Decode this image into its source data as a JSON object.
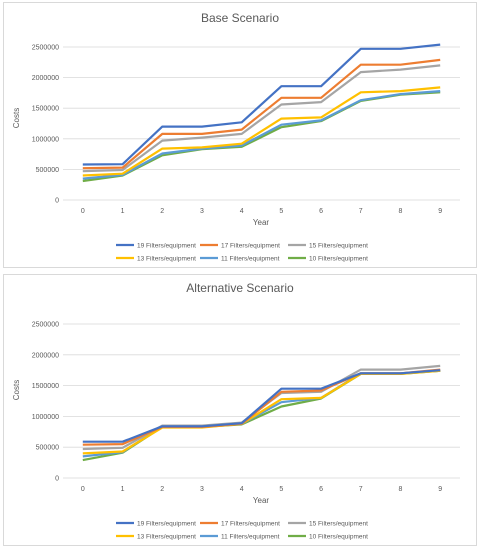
{
  "chart_data": [
    {
      "type": "line",
      "title": "Base Scenario",
      "xlabel": "Year",
      "ylabel": "Costs",
      "x": [
        0,
        1,
        2,
        3,
        4,
        5,
        6,
        7,
        8,
        9
      ],
      "ylim": [
        0,
        2500000
      ],
      "yticks": [
        0,
        500000,
        1000000,
        1500000,
        2000000,
        2500000
      ],
      "grid": true,
      "legend": "bottom",
      "series": [
        {
          "name": "19 Filters/equipment",
          "color": "#4472C4",
          "values": [
            580000,
            585000,
            1200000,
            1200000,
            1270000,
            1860000,
            1860000,
            2470000,
            2470000,
            2540000
          ]
        },
        {
          "name": "17 Filters/equipment",
          "color": "#ED7D31",
          "values": [
            520000,
            530000,
            1080000,
            1080000,
            1150000,
            1670000,
            1670000,
            2210000,
            2210000,
            2290000
          ]
        },
        {
          "name": "15 Filters/equipment",
          "color": "#A5A5A5",
          "values": [
            470000,
            490000,
            970000,
            1020000,
            1080000,
            1560000,
            1600000,
            2090000,
            2130000,
            2200000
          ]
        },
        {
          "name": "13 Filters/equipment",
          "color": "#FFC000",
          "values": [
            400000,
            430000,
            840000,
            860000,
            920000,
            1330000,
            1350000,
            1760000,
            1780000,
            1840000
          ]
        },
        {
          "name": "11 Filters/equipment",
          "color": "#5B9BD5",
          "values": [
            350000,
            410000,
            760000,
            840000,
            890000,
            1230000,
            1300000,
            1630000,
            1730000,
            1780000
          ]
        },
        {
          "name": "10 Filters/equipment",
          "color": "#70AD47",
          "values": [
            310000,
            400000,
            730000,
            830000,
            870000,
            1190000,
            1290000,
            1620000,
            1720000,
            1760000
          ]
        }
      ]
    },
    {
      "type": "line",
      "title": "Alternative Scenario",
      "xlabel": "Year",
      "ylabel": "Costs",
      "x": [
        0,
        1,
        2,
        3,
        4,
        5,
        6,
        7,
        8,
        9
      ],
      "ylim": [
        0,
        2500000
      ],
      "yticks": [
        0,
        500000,
        1000000,
        1500000,
        2000000,
        2500000
      ],
      "grid": true,
      "legend": "bottom",
      "series": [
        {
          "name": "19 Filters/equipment",
          "color": "#4472C4",
          "values": [
            590000,
            590000,
            840000,
            840000,
            890000,
            1450000,
            1450000,
            1700000,
            1700000,
            1750000
          ]
        },
        {
          "name": "17 Filters/equipment",
          "color": "#ED7D31",
          "values": [
            540000,
            550000,
            830000,
            830000,
            880000,
            1400000,
            1420000,
            1700000,
            1700000,
            1760000
          ]
        },
        {
          "name": "15 Filters/equipment",
          "color": "#A5A5A5",
          "values": [
            470000,
            490000,
            850000,
            850000,
            900000,
            1380000,
            1400000,
            1760000,
            1760000,
            1820000
          ]
        },
        {
          "name": "13 Filters/equipment",
          "color": "#FFC000",
          "values": [
            400000,
            430000,
            820000,
            820000,
            880000,
            1280000,
            1300000,
            1690000,
            1690000,
            1740000
          ]
        },
        {
          "name": "11 Filters/equipment",
          "color": "#5B9BD5",
          "values": [
            350000,
            420000,
            840000,
            840000,
            880000,
            1230000,
            1300000,
            1700000,
            1700000,
            1740000
          ]
        },
        {
          "name": "10 Filters/equipment",
          "color": "#70AD47",
          "values": [
            290000,
            410000,
            830000,
            830000,
            870000,
            1160000,
            1290000,
            1690000,
            1690000,
            1740000
          ]
        }
      ]
    }
  ]
}
